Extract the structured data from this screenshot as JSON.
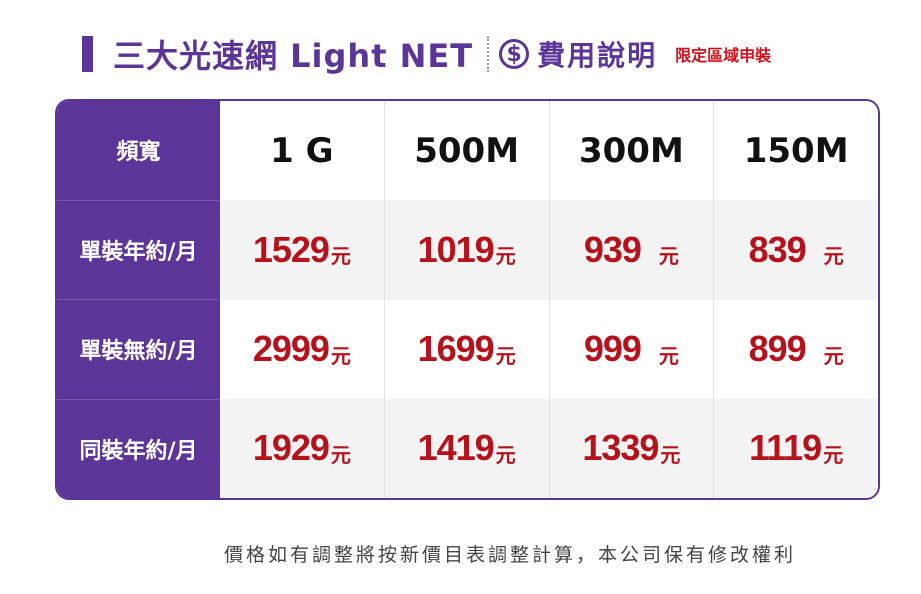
{
  "header": {
    "title": "三大光速網 Light NET",
    "dollar_symbol": "$",
    "subtitle": "費用說明",
    "region_note": "限定區域申裝"
  },
  "table": {
    "corner_label": "頻寬",
    "columns": [
      "1 G",
      "500M",
      "300M",
      "150M"
    ],
    "rows": [
      {
        "label": "單裝年約/月",
        "prices": [
          "1529",
          "1019",
          "939",
          "839"
        ]
      },
      {
        "label": "單裝無約/月",
        "prices": [
          "2999",
          "1699",
          "999",
          "899"
        ]
      },
      {
        "label": "同裝年約/月",
        "prices": [
          "1929",
          "1419",
          "1339",
          "1119"
        ]
      }
    ],
    "unit": "元"
  },
  "footer": {
    "note": "價格如有調整將按新價目表調整計算，本公司保有修改權利"
  },
  "colors": {
    "brand_purple": "#5b3597",
    "price_red": "#b5121b",
    "note_red": "#d1111c"
  }
}
